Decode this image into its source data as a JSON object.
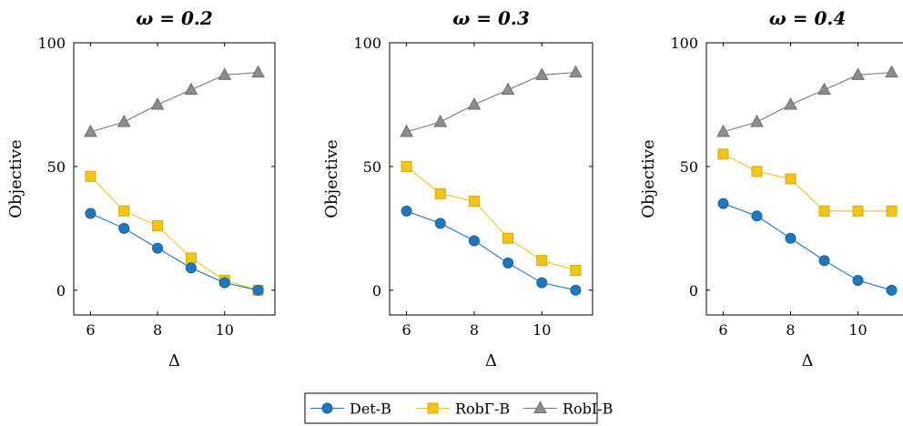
{
  "chart_data": [
    {
      "type": "line",
      "title": "ω = 0.2",
      "xlabel": "Δ",
      "ylabel": "Objective",
      "xlim": [
        5.5,
        11.5
      ],
      "ylim": [
        -10,
        100
      ],
      "xticks": [
        "6",
        "8",
        "10"
      ],
      "yticks": [
        "0",
        "50",
        "100"
      ],
      "x": [
        6,
        7,
        8,
        9,
        10,
        11
      ],
      "series": [
        {
          "name": "Det-B",
          "values": [
            31,
            25,
            17,
            9,
            3,
            0
          ]
        },
        {
          "name": "RobΓ-B",
          "values": [
            46,
            32,
            26,
            13,
            4,
            0
          ]
        },
        {
          "name": "RobI-B",
          "values": [
            64,
            68,
            75,
            81,
            87,
            88
          ]
        }
      ]
    },
    {
      "type": "line",
      "title": "ω = 0.3",
      "xlabel": "Δ",
      "ylabel": "Objective",
      "xlim": [
        5.5,
        11.5
      ],
      "ylim": [
        -10,
        100
      ],
      "xticks": [
        "6",
        "8",
        "10"
      ],
      "yticks": [
        "0",
        "50",
        "100"
      ],
      "x": [
        6,
        7,
        8,
        9,
        10,
        11
      ],
      "series": [
        {
          "name": "Det-B",
          "values": [
            32,
            27,
            20,
            11,
            3,
            0
          ]
        },
        {
          "name": "RobΓ-B",
          "values": [
            50,
            39,
            36,
            21,
            12,
            8
          ]
        },
        {
          "name": "RobI-B",
          "values": [
            64,
            68,
            75,
            81,
            87,
            88
          ]
        }
      ]
    },
    {
      "type": "line",
      "title": "ω = 0.4",
      "xlabel": "Δ",
      "ylabel": "Objective",
      "xlim": [
        5.5,
        11.5
      ],
      "ylim": [
        -10,
        100
      ],
      "xticks": [
        "6",
        "8",
        "10"
      ],
      "yticks": [
        "0",
        "50",
        "100"
      ],
      "x": [
        6,
        7,
        8,
        9,
        10,
        11
      ],
      "series": [
        {
          "name": "Det-B",
          "values": [
            35,
            30,
            21,
            12,
            4,
            0
          ]
        },
        {
          "name": "RobΓ-B",
          "values": [
            55,
            48,
            45,
            32,
            32,
            32
          ]
        },
        {
          "name": "RobI-B",
          "values": [
            64,
            68,
            75,
            81,
            87,
            88
          ]
        }
      ]
    }
  ],
  "legend": {
    "placement": "bottom-center",
    "items": [
      {
        "label": "Det-B",
        "color": "#1f77c0",
        "marker": "circle"
      },
      {
        "label": "RobΓ-B",
        "color": "#f2c419",
        "marker": "square"
      },
      {
        "label": "RobI-B",
        "color": "#8c8c8c",
        "marker": "triangle"
      }
    ]
  }
}
